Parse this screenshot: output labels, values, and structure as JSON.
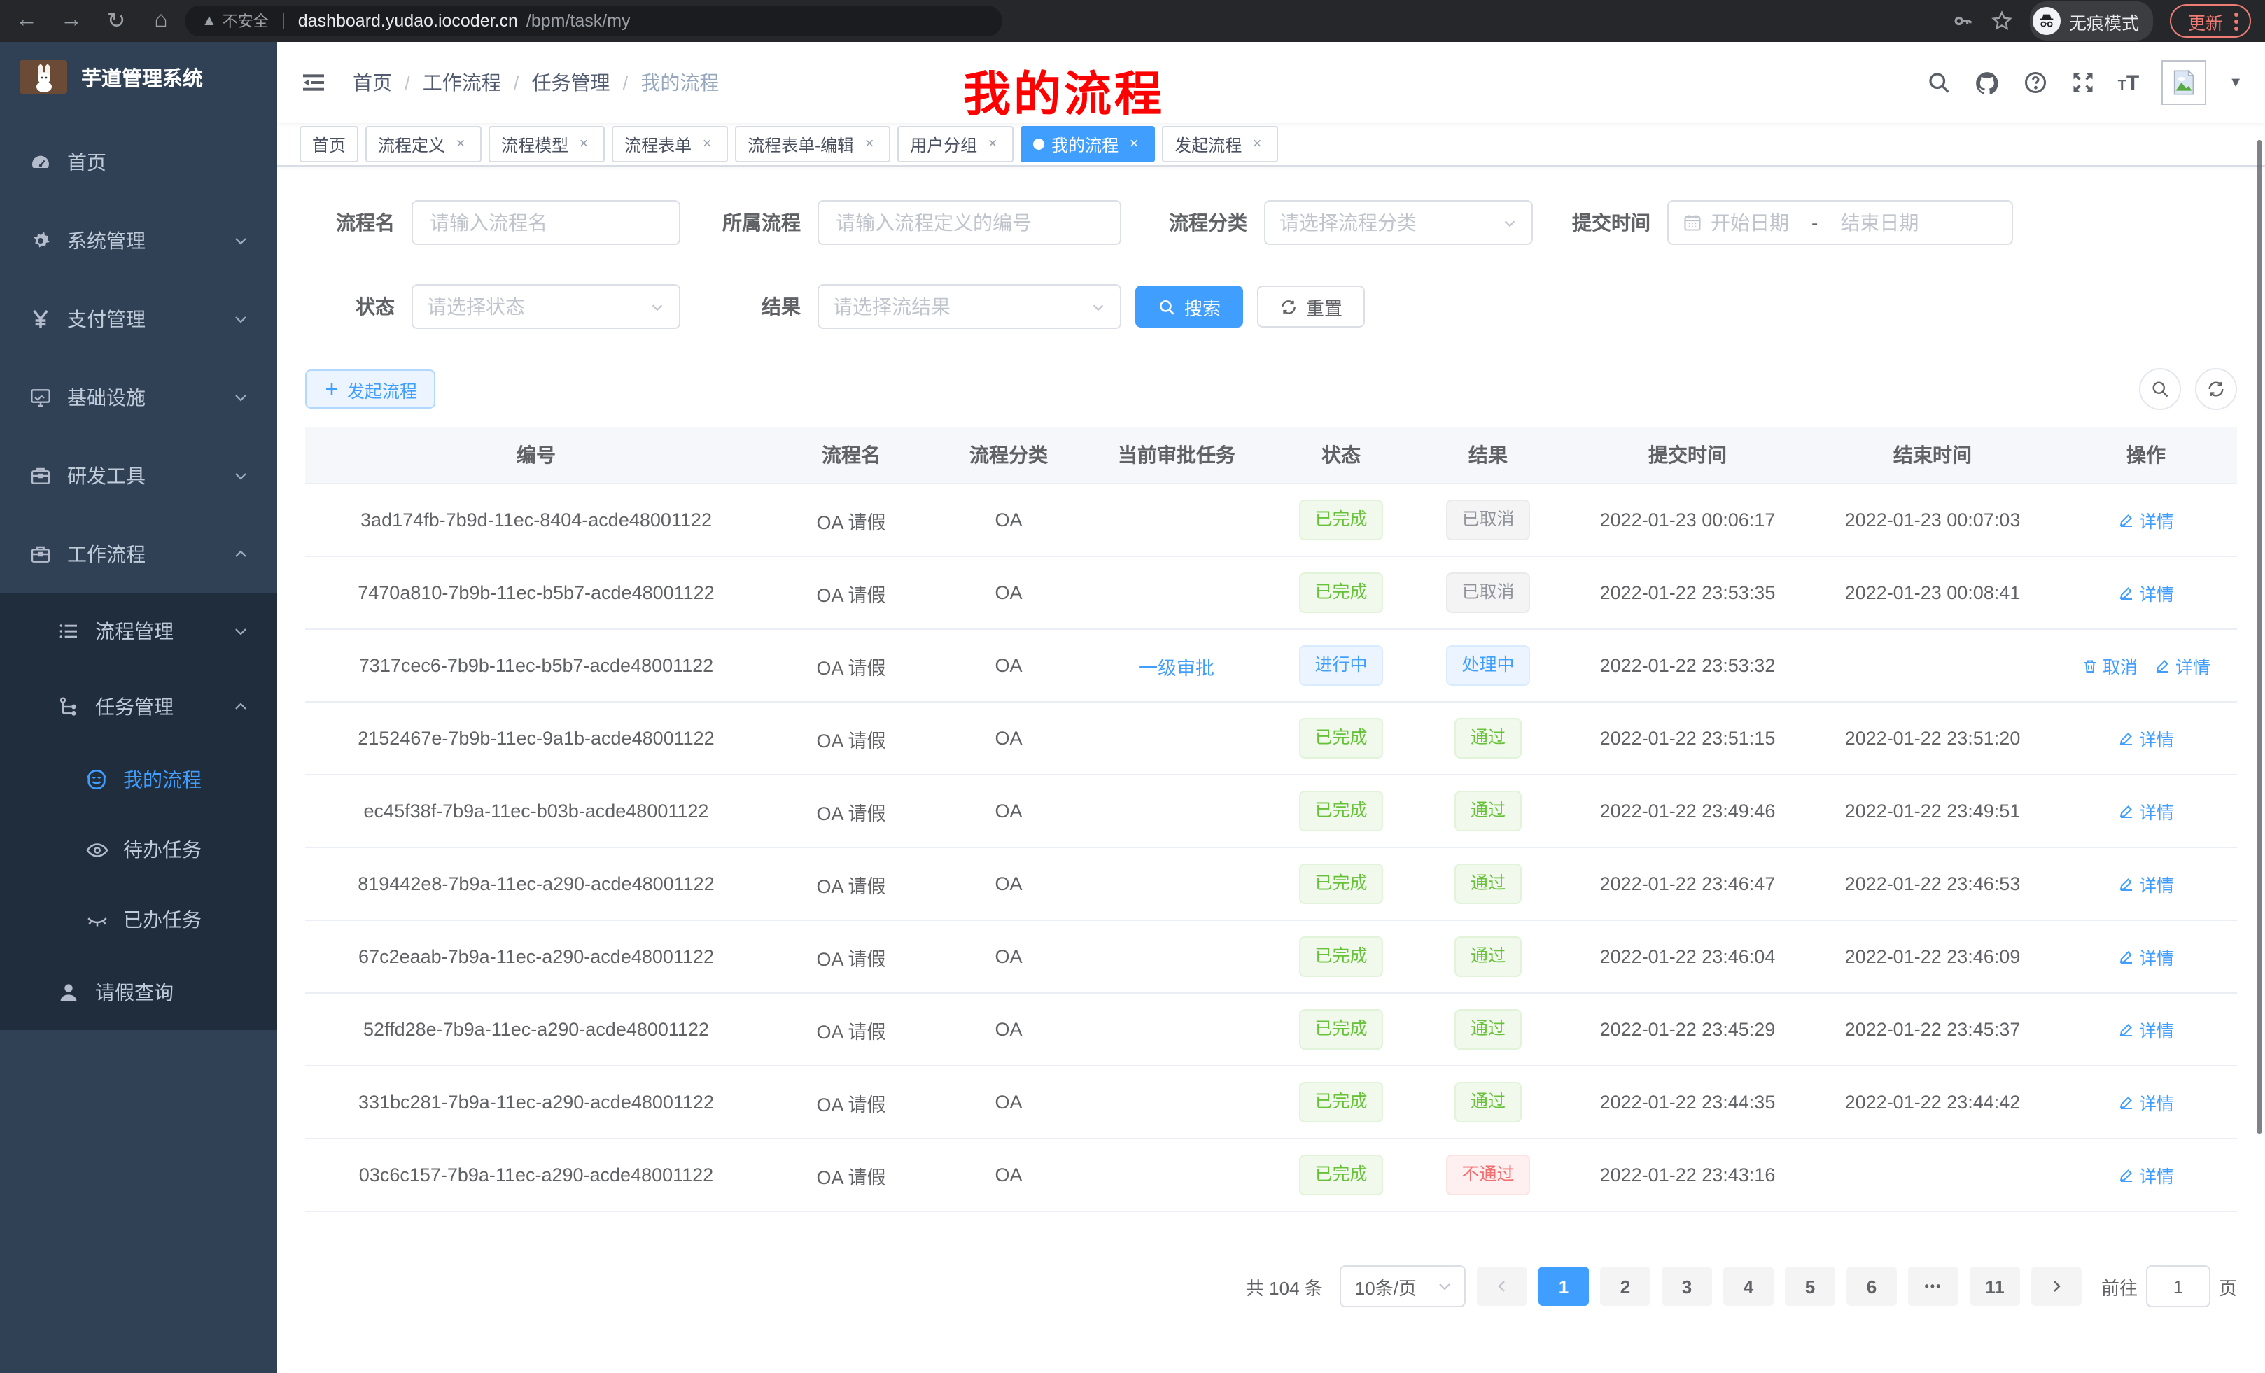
{
  "browser": {
    "security_label": "不安全",
    "url_host": "dashboard.yudao.iocoder.cn",
    "url_path": "/bpm/task/my",
    "incognito_label": "无痕模式",
    "update_label": "更新"
  },
  "sidebar": {
    "title": "芋道管理系统",
    "menu": [
      {
        "label": "首页",
        "icon": "dashboard-icon",
        "level": 1
      },
      {
        "label": "系统管理",
        "icon": "gear-icon",
        "level": 1,
        "arrow": "down"
      },
      {
        "label": "支付管理",
        "icon": "yen-icon",
        "level": 1,
        "arrow": "down"
      },
      {
        "label": "基础设施",
        "icon": "monitor-icon",
        "level": 1,
        "arrow": "down"
      },
      {
        "label": "研发工具",
        "icon": "toolbox-icon",
        "level": 1,
        "arrow": "down"
      },
      {
        "label": "工作流程",
        "icon": "toolbox-icon",
        "level": 1,
        "arrow": "up"
      },
      {
        "label": "流程管理",
        "icon": "list-icon",
        "level": 2,
        "arrow": "down"
      },
      {
        "label": "任务管理",
        "icon": "flow-icon",
        "level": 2,
        "arrow": "up"
      },
      {
        "label": "我的流程",
        "icon": "robot-icon",
        "level": 3,
        "active": true
      },
      {
        "label": "待办任务",
        "icon": "eye-icon",
        "level": 3
      },
      {
        "label": "已办任务",
        "icon": "eye-closed-icon",
        "level": 3
      },
      {
        "label": "请假查询",
        "icon": "user-icon",
        "level": 2
      }
    ]
  },
  "navbar": {
    "breadcrumb": [
      "首页",
      "工作流程",
      "任务管理",
      "我的流程"
    ]
  },
  "overlay_title": "我的流程",
  "tags": [
    {
      "label": "首页",
      "closable": false,
      "active": false
    },
    {
      "label": "流程定义",
      "closable": true,
      "active": false
    },
    {
      "label": "流程模型",
      "closable": true,
      "active": false
    },
    {
      "label": "流程表单",
      "closable": true,
      "active": false
    },
    {
      "label": "流程表单-编辑",
      "closable": true,
      "active": false
    },
    {
      "label": "用户分组",
      "closable": true,
      "active": false
    },
    {
      "label": "我的流程",
      "closable": true,
      "active": true
    },
    {
      "label": "发起流程",
      "closable": true,
      "active": false
    }
  ],
  "filters": {
    "name_label": "流程名",
    "name_placeholder": "请输入流程名",
    "definition_label": "所属流程",
    "definition_placeholder": "请输入流程定义的编号",
    "category_label": "流程分类",
    "category_placeholder": "请选择流程分类",
    "time_label": "提交时间",
    "time_start_placeholder": "开始日期",
    "time_separator": "-",
    "time_end_placeholder": "结束日期",
    "status_label": "状态",
    "status_placeholder": "请选择状态",
    "result_label": "结果",
    "result_placeholder": "请选择流结果",
    "search_label": "搜索",
    "reset_label": "重置"
  },
  "toolbar": {
    "create_label": "发起流程"
  },
  "table": {
    "columns": [
      "编号",
      "流程名",
      "流程分类",
      "当前审批任务",
      "状态",
      "结果",
      "提交时间",
      "结束时间",
      "操作"
    ],
    "rows": [
      {
        "id": "3ad174fb-7b9d-11ec-8404-acde48001122",
        "name": "OA 请假",
        "category": "OA",
        "task": "",
        "status": "已完成",
        "status_type": "success",
        "result": "已取消",
        "result_type": "info",
        "submit_time": "2022-01-23 00:06:17",
        "end_time": "2022-01-23 00:07:03",
        "actions": [
          "详情"
        ]
      },
      {
        "id": "7470a810-7b9b-11ec-b5b7-acde48001122",
        "name": "OA 请假",
        "category": "OA",
        "task": "",
        "status": "已完成",
        "status_type": "success",
        "result": "已取消",
        "result_type": "info",
        "submit_time": "2022-01-22 23:53:35",
        "end_time": "2022-01-23 00:08:41",
        "actions": [
          "详情"
        ]
      },
      {
        "id": "7317cec6-7b9b-11ec-b5b7-acde48001122",
        "name": "OA 请假",
        "category": "OA",
        "task": "一级审批",
        "status": "进行中",
        "status_type": "primary",
        "result": "处理中",
        "result_type": "primary",
        "submit_time": "2022-01-22 23:53:32",
        "end_time": "",
        "actions": [
          "取消",
          "详情"
        ]
      },
      {
        "id": "2152467e-7b9b-11ec-9a1b-acde48001122",
        "name": "OA 请假",
        "category": "OA",
        "task": "",
        "status": "已完成",
        "status_type": "success",
        "result": "通过",
        "result_type": "success",
        "submit_time": "2022-01-22 23:51:15",
        "end_time": "2022-01-22 23:51:20",
        "actions": [
          "详情"
        ]
      },
      {
        "id": "ec45f38f-7b9a-11ec-b03b-acde48001122",
        "name": "OA 请假",
        "category": "OA",
        "task": "",
        "status": "已完成",
        "status_type": "success",
        "result": "通过",
        "result_type": "success",
        "submit_time": "2022-01-22 23:49:46",
        "end_time": "2022-01-22 23:49:51",
        "actions": [
          "详情"
        ]
      },
      {
        "id": "819442e8-7b9a-11ec-a290-acde48001122",
        "name": "OA 请假",
        "category": "OA",
        "task": "",
        "status": "已完成",
        "status_type": "success",
        "result": "通过",
        "result_type": "success",
        "submit_time": "2022-01-22 23:46:47",
        "end_time": "2022-01-22 23:46:53",
        "actions": [
          "详情"
        ]
      },
      {
        "id": "67c2eaab-7b9a-11ec-a290-acde48001122",
        "name": "OA 请假",
        "category": "OA",
        "task": "",
        "status": "已完成",
        "status_type": "success",
        "result": "通过",
        "result_type": "success",
        "submit_time": "2022-01-22 23:46:04",
        "end_time": "2022-01-22 23:46:09",
        "actions": [
          "详情"
        ]
      },
      {
        "id": "52ffd28e-7b9a-11ec-a290-acde48001122",
        "name": "OA 请假",
        "category": "OA",
        "task": "",
        "status": "已完成",
        "status_type": "success",
        "result": "通过",
        "result_type": "success",
        "submit_time": "2022-01-22 23:45:29",
        "end_time": "2022-01-22 23:45:37",
        "actions": [
          "详情"
        ]
      },
      {
        "id": "331bc281-7b9a-11ec-a290-acde48001122",
        "name": "OA 请假",
        "category": "OA",
        "task": "",
        "status": "已完成",
        "status_type": "success",
        "result": "通过",
        "result_type": "success",
        "submit_time": "2022-01-22 23:44:35",
        "end_time": "2022-01-22 23:44:42",
        "actions": [
          "详情"
        ]
      },
      {
        "id": "03c6c157-7b9a-11ec-a290-acde48001122",
        "name": "OA 请假",
        "category": "OA",
        "task": "",
        "status": "已完成",
        "status_type": "success",
        "result": "不通过",
        "result_type": "danger",
        "submit_time": "2022-01-22 23:43:16",
        "end_time": "",
        "actions": [
          "详情"
        ]
      }
    ]
  },
  "pagination": {
    "total_label": "共 104 条",
    "page_size_label": "10条/页",
    "pages": [
      "1",
      "2",
      "3",
      "4",
      "5",
      "6",
      "more",
      "11"
    ],
    "active_page": "1",
    "goto_label": "前往",
    "goto_value": "1",
    "goto_suffix": "页"
  },
  "colors": {
    "primary": "#409eff",
    "success": "#67c23a",
    "danger": "#f56c6c",
    "info": "#909399",
    "sidebar_bg": "#304156",
    "submenu_bg": "#1f2d3d"
  }
}
